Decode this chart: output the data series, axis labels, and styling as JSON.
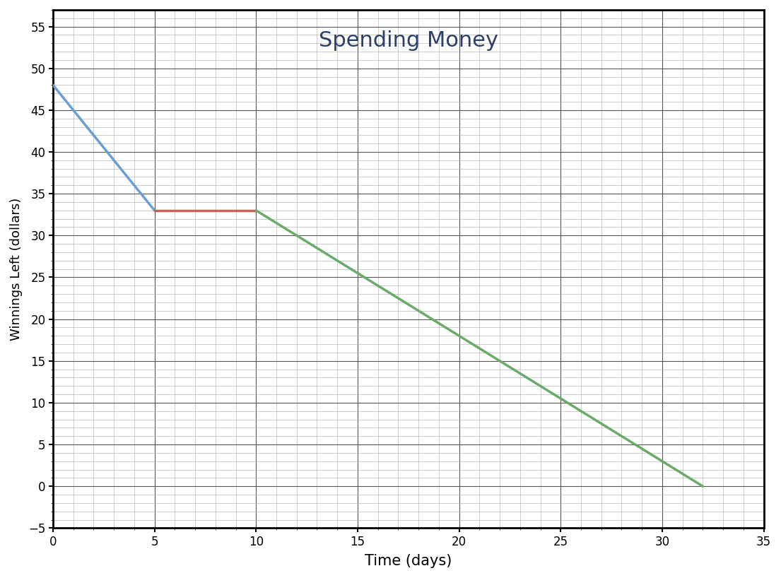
{
  "title": "Spending Money",
  "title_color": "#2d3f6b",
  "title_fontsize": 22,
  "xlabel": "Time (days)",
  "ylabel": "Winnings Left (dollars)",
  "xlim": [
    0,
    35
  ],
  "ylim": [
    -5,
    57
  ],
  "xticks": [
    0,
    5,
    10,
    15,
    20,
    25,
    30,
    35
  ],
  "yticks": [
    -5,
    0,
    5,
    10,
    15,
    20,
    25,
    30,
    35,
    40,
    45,
    50,
    55
  ],
  "segment1": {
    "x": [
      0,
      5
    ],
    "y": [
      48,
      33
    ],
    "color": "#6b9fd4",
    "linewidth": 2.5
  },
  "segment2": {
    "x": [
      5,
      10
    ],
    "y": [
      33,
      33
    ],
    "color": "#c8635a",
    "linewidth": 2.5
  },
  "segment3": {
    "x": [
      10,
      32
    ],
    "y": [
      33,
      0
    ],
    "color": "#6aab6a",
    "linewidth": 2.5
  },
  "major_grid_color": "#555555",
  "major_grid_linewidth": 0.8,
  "minor_grid_color": "#aaaaaa",
  "minor_grid_linewidth": 0.4,
  "background_color": "#ffffff",
  "spine_linewidth": 2.0,
  "tick_labelsize": 12
}
